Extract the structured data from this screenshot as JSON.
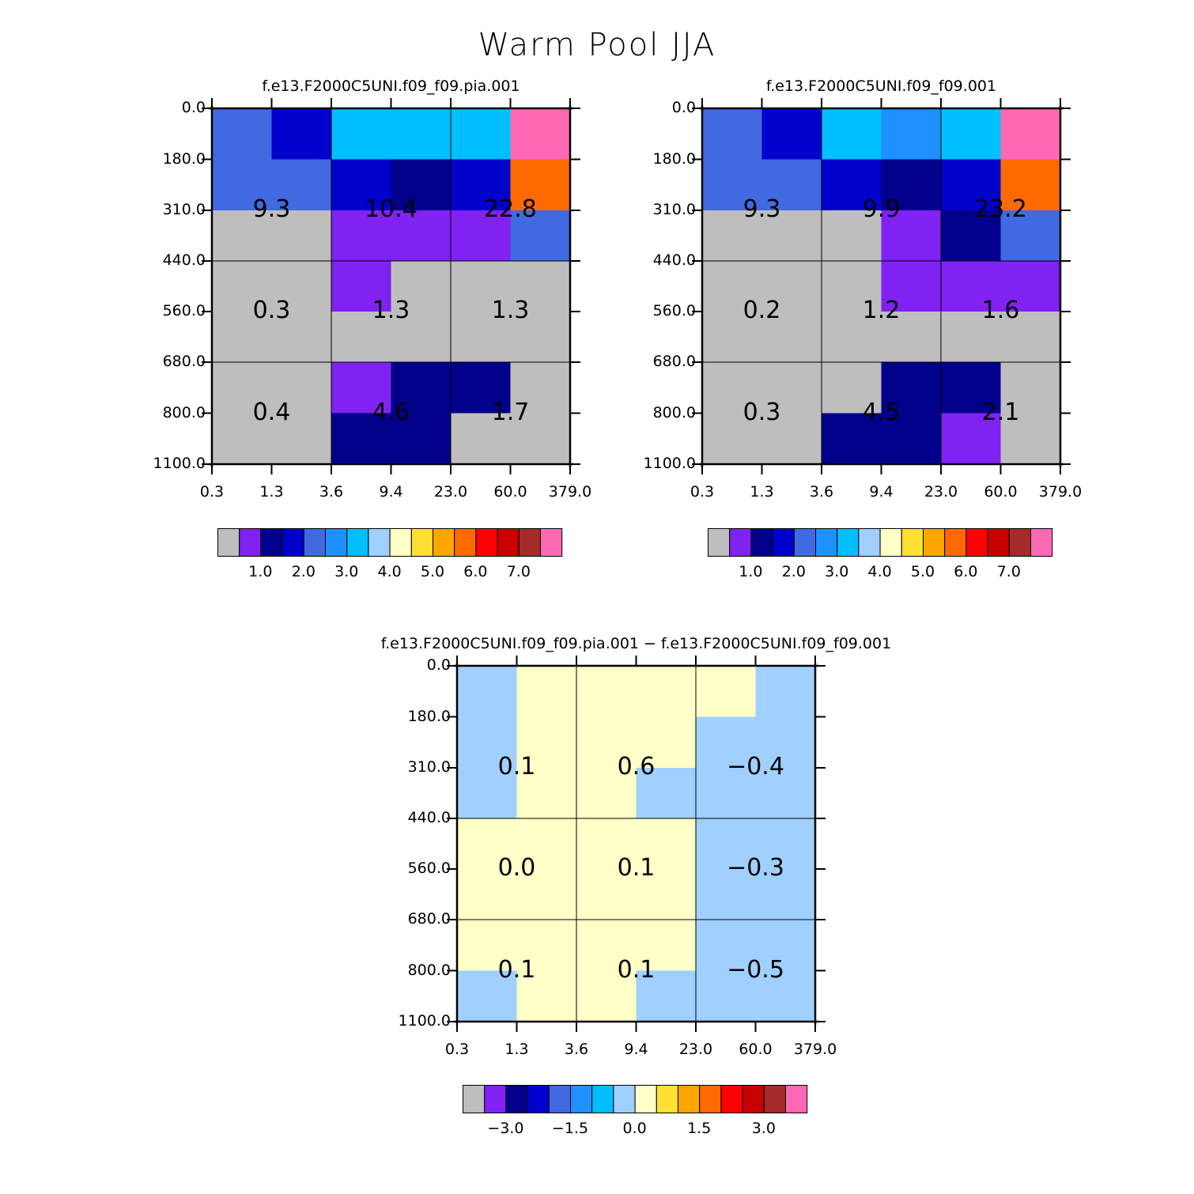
{
  "title": "Warm Pool JJA",
  "x_tick_labels": [
    "0.3",
    "1.3",
    "3.6",
    "9.4",
    "23.0",
    "60.0",
    "379.0"
  ],
  "y_tick_labels": [
    "0.0",
    "180.0",
    "310.0",
    "440.0",
    "560.0",
    "680.0",
    "800.0",
    "1100.0"
  ],
  "palette": [
    "#bebebe",
    "#7f22f2",
    "#00008b",
    "#0000cd",
    "#4169e1",
    "#1e90ff",
    "#00bfff",
    "#a0d0ff",
    "#ffffc8",
    "#ffe033",
    "#ffa500",
    "#ff6a00",
    "#ff0000",
    "#c80000",
    "#a52a2a",
    "#ff69b4"
  ],
  "chart_data": [
    {
      "type": "heatmap",
      "title": "f.e13.F2000C5UNI.f09_f09.pia.001",
      "cell_colors": [
        [
          4,
          3,
          6,
          6,
          6,
          15
        ],
        [
          4,
          4,
          3,
          2,
          3,
          11
        ],
        [
          0,
          0,
          1,
          1,
          1,
          4
        ],
        [
          0,
          0,
          1,
          0,
          0,
          0
        ],
        [
          0,
          0,
          0,
          0,
          0,
          0
        ],
        [
          0,
          0,
          1,
          2,
          2,
          0
        ],
        [
          0,
          0,
          2,
          2,
          0,
          0
        ]
      ],
      "box_values": [
        [
          "9.3",
          "10.4",
          "22.8"
        ],
        [
          "0.3",
          "1.3",
          "1.3"
        ],
        [
          "0.4",
          "4.6",
          "1.7"
        ]
      ],
      "colorbar_labels": [
        "1.0",
        "2.0",
        "3.0",
        "4.0",
        "5.0",
        "6.0",
        "7.0"
      ]
    },
    {
      "type": "heatmap",
      "title": "f.e13.F2000C5UNI.f09_f09.001",
      "cell_colors": [
        [
          4,
          3,
          6,
          5,
          6,
          15
        ],
        [
          4,
          4,
          3,
          2,
          3,
          11
        ],
        [
          0,
          0,
          0,
          1,
          2,
          4
        ],
        [
          0,
          0,
          0,
          1,
          1,
          1
        ],
        [
          0,
          0,
          0,
          0,
          0,
          0
        ],
        [
          0,
          0,
          0,
          2,
          2,
          0
        ],
        [
          0,
          0,
          2,
          2,
          1,
          0
        ]
      ],
      "box_values": [
        [
          "9.3",
          "9.9",
          "23.2"
        ],
        [
          "0.2",
          "1.2",
          "1.6"
        ],
        [
          "0.3",
          "4.5",
          "2.1"
        ]
      ],
      "colorbar_labels": [
        "1.0",
        "2.0",
        "3.0",
        "4.0",
        "5.0",
        "6.0",
        "7.0"
      ]
    },
    {
      "type": "heatmap",
      "title": "f.e13.F2000C5UNI.f09_f09.pia.001 − f.e13.F2000C5UNI.f09_f09.001",
      "cell_colors": [
        [
          7,
          8,
          8,
          8,
          8,
          7
        ],
        [
          7,
          8,
          8,
          8,
          7,
          7
        ],
        [
          7,
          8,
          8,
          7,
          7,
          7
        ],
        [
          8,
          8,
          8,
          8,
          7,
          7
        ],
        [
          8,
          8,
          8,
          8,
          7,
          7
        ],
        [
          8,
          8,
          8,
          8,
          7,
          7
        ],
        [
          7,
          8,
          8,
          7,
          7,
          7
        ]
      ],
      "box_values": [
        [
          "0.1",
          "0.6",
          "−0.4"
        ],
        [
          "0.0",
          "0.1",
          "−0.3"
        ],
        [
          "0.1",
          "0.1",
          "−0.5"
        ]
      ],
      "colorbar_labels": [
        "−3.0",
        "−1.5",
        "0.0",
        "1.5",
        "3.0"
      ]
    }
  ]
}
